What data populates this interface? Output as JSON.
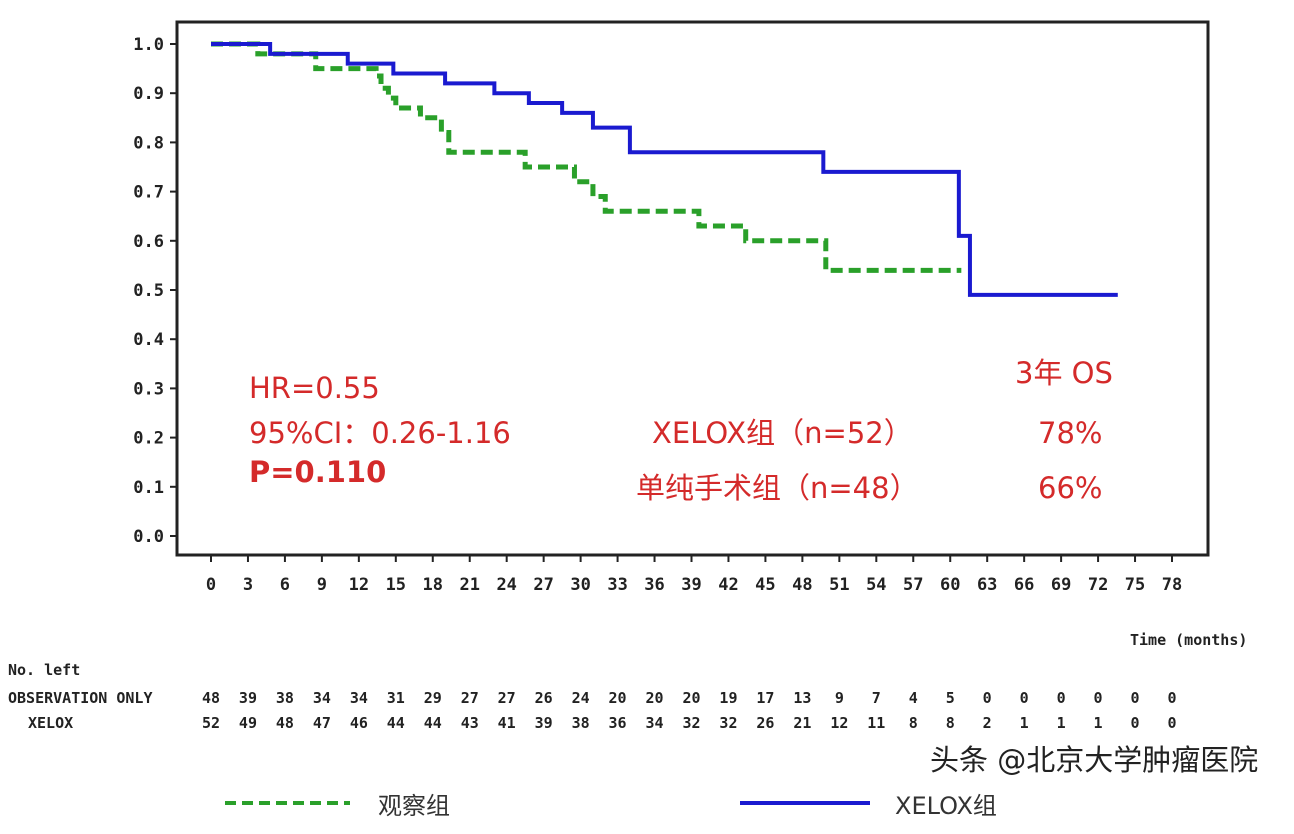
{
  "chart_data": {
    "type": "line",
    "subtype": "kaplan-meier step",
    "xlabel": "Time (months)",
    "ylabel": "",
    "xlim": [
      0,
      78
    ],
    "ylim": [
      0,
      1.0
    ],
    "x_ticks": [
      "0",
      "3",
      "6",
      "9",
      "12",
      "15",
      "18",
      "21",
      "24",
      "27",
      "30",
      "33",
      "36",
      "39",
      "42",
      "45",
      "48",
      "51",
      "54",
      "57",
      "60",
      "63",
      "66",
      "69",
      "72",
      "75",
      "78"
    ],
    "y_ticks": [
      "1.0",
      "0.9",
      "0.8",
      "0.7",
      "0.6",
      "0.5",
      "0.4",
      "0.3",
      "0.2",
      "0.1",
      "0.0"
    ],
    "grid": false,
    "series": [
      {
        "name": "XELOX组",
        "color": "#1a1ad0",
        "style": "solid",
        "steps": [
          [
            0,
            1.0
          ],
          [
            4.8,
            0.98
          ],
          [
            11.1,
            0.96
          ],
          [
            14.8,
            0.94
          ],
          [
            19,
            0.92
          ],
          [
            23,
            0.9
          ],
          [
            25.8,
            0.88
          ],
          [
            28.5,
            0.86
          ],
          [
            31,
            0.83
          ],
          [
            34,
            0.78
          ],
          [
            49.7,
            0.74
          ],
          [
            60.7,
            0.61
          ],
          [
            61.6,
            0.49
          ],
          [
            73.6,
            0.49
          ]
        ]
      },
      {
        "name": "观察组",
        "color": "#2aa02a",
        "style": "dashed",
        "steps": [
          [
            0,
            1.0
          ],
          [
            3.8,
            0.98
          ],
          [
            8.5,
            0.95
          ],
          [
            13.4,
            0.935
          ],
          [
            13.8,
            0.91
          ],
          [
            14.4,
            0.89
          ],
          [
            15,
            0.87
          ],
          [
            17,
            0.85
          ],
          [
            18.7,
            0.82
          ],
          [
            19.3,
            0.78
          ],
          [
            25.5,
            0.75
          ],
          [
            29.5,
            0.72
          ],
          [
            31,
            0.69
          ],
          [
            32,
            0.66
          ],
          [
            39.6,
            0.63
          ],
          [
            43.4,
            0.6
          ],
          [
            49.9,
            0.54
          ],
          [
            60.9,
            0.54
          ]
        ]
      }
    ],
    "annotations": {
      "hr": "HR=0.55",
      "ci": "95%CI：0.26-1.16",
      "p": "P=0.110",
      "os_header": "3年 OS",
      "xelox_group": "XELOX组（n=52）",
      "xelox_os": "78%",
      "surgery_group": "单纯手术组（n=48）",
      "surgery_os": "66%"
    },
    "risk_table": {
      "header": "No. left",
      "rows": [
        {
          "label": "OBSERVATION ONLY",
          "values": [
            "48",
            "39",
            "38",
            "34",
            "34",
            "31",
            "29",
            "27",
            "27",
            "26",
            "24",
            "20",
            "20",
            "20",
            "19",
            "17",
            "13",
            "9",
            "7",
            "4",
            "5",
            "0",
            "0",
            "0",
            "0",
            "0",
            "0"
          ]
        },
        {
          "label": "XELOX",
          "values": [
            "52",
            "49",
            "48",
            "47",
            "46",
            "44",
            "44",
            "43",
            "41",
            "39",
            "38",
            "36",
            "34",
            "32",
            "32",
            "26",
            "21",
            "12",
            "11",
            "8",
            "8",
            "2",
            "1",
            "1",
            "1",
            "0",
            "0"
          ]
        }
      ]
    },
    "legend": [
      {
        "label": "观察组",
        "color": "#2aa02a",
        "style": "dashed"
      },
      {
        "label": "XELOX组",
        "color": "#1a1ad0",
        "style": "solid"
      }
    ],
    "legend_position": "bottom"
  },
  "watermark": "头条 @北京大学肿瘤医院"
}
